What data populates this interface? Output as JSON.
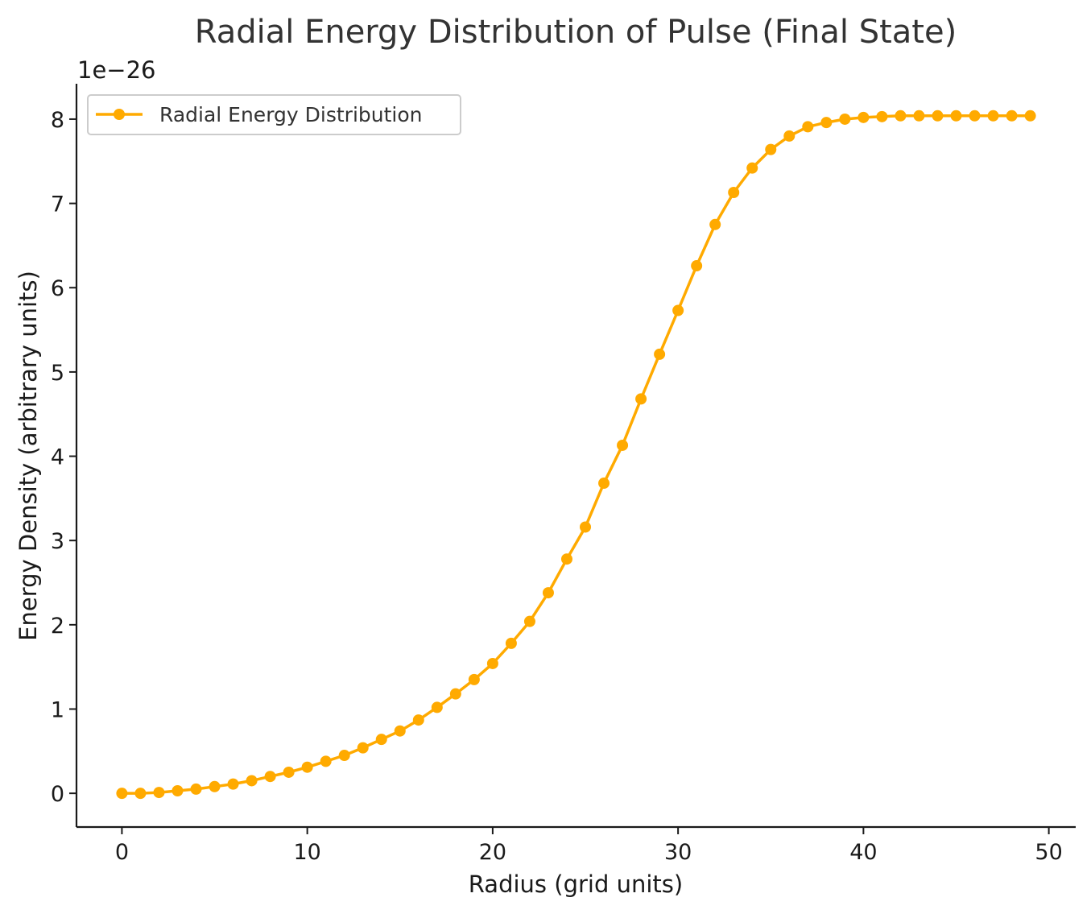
{
  "chart_data": {
    "type": "line",
    "title": "Radial Energy Distribution of Pulse (Final State)",
    "xlabel": "Radius (grid units)",
    "ylabel": "Energy Density (arbitrary units)",
    "y_offset_label": "1e−26",
    "y_scale": 1e-26,
    "xlim": [
      -2.45,
      51.45
    ],
    "ylim": [
      -0.4,
      8.42
    ],
    "x_ticks": [
      0,
      10,
      20,
      30,
      40,
      50
    ],
    "y_ticks": [
      0,
      1,
      2,
      3,
      4,
      5,
      6,
      7,
      8
    ],
    "grid": false,
    "legend_position": "top-left",
    "series": [
      {
        "name": "Radial Energy Distribution",
        "color": "#ffaa00",
        "marker": "circle",
        "x": [
          0,
          1,
          2,
          3,
          4,
          5,
          6,
          7,
          8,
          9,
          10,
          11,
          12,
          13,
          14,
          15,
          16,
          17,
          18,
          19,
          20,
          21,
          22,
          23,
          24,
          25,
          26,
          27,
          28,
          29,
          30,
          31,
          32,
          33,
          34,
          35,
          36,
          37,
          38,
          39,
          40,
          41,
          42,
          43,
          44,
          45,
          46,
          47,
          48,
          49
        ],
        "y": [
          0.0,
          0.0,
          0.01,
          0.03,
          0.05,
          0.08,
          0.11,
          0.15,
          0.2,
          0.25,
          0.31,
          0.38,
          0.45,
          0.54,
          0.64,
          0.74,
          0.87,
          1.02,
          1.18,
          1.35,
          1.54,
          1.78,
          2.04,
          2.38,
          2.78,
          3.16,
          3.68,
          4.13,
          4.68,
          5.21,
          5.73,
          6.26,
          6.75,
          7.13,
          7.42,
          7.64,
          7.8,
          7.91,
          7.96,
          8.0,
          8.02,
          8.03,
          8.04,
          8.04,
          8.04,
          8.04,
          8.04,
          8.04,
          8.04,
          8.04
        ]
      }
    ]
  }
}
